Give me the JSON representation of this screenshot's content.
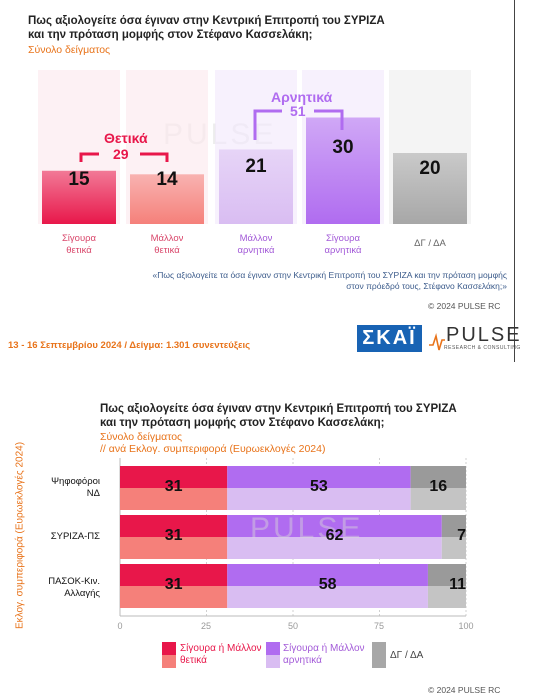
{
  "chart1": {
    "title_line1": "Πως αξιολογείτε όσα έγιναν στην Κεντρική Επιτροπή του ΣΥΡΙΖΑ",
    "title_line2": "και την πρόταση μομφής στον Στέφανο Κασσελάκη;",
    "subtitle": "Σύνολο δείγματος",
    "group_pos_label": "Θετικά",
    "group_pos_total": "29",
    "group_neg_label": "Αρνητικά",
    "group_neg_total": "51",
    "note_line1": "«Πως αξιολογείτε τα όσα έγιναν στην Κεντρική Επιτροπή του ΣΥΡΙΖΑ και την πρόταση μομφής",
    "note_line2": "στον πρόεδρό τους, Στέφανο Κασσελάκη;»",
    "copyright": "© 2024 PULSE RC",
    "labels": [
      {
        "l1": "Σίγουρα",
        "l2": "θετικά"
      },
      {
        "l1": "Μάλλον",
        "l2": "θετικά"
      },
      {
        "l1": "Μάλλον",
        "l2": "αρνητικά"
      },
      {
        "l1": "Σίγουρα",
        "l2": "αρνητικά"
      },
      {
        "l1": "ΔΓ / ΔΑ",
        "l2": ""
      }
    ],
    "value_labels": [
      "15",
      "14",
      "21",
      "30",
      "20"
    ]
  },
  "footer": {
    "dates": "13 - 16 Σεπτεμβρίου 2024  /  Δείγμα:  1.301 συνεντεύξεις",
    "logo_skai": "ΣΚΑΪ",
    "logo_pulse": "PULSE",
    "logo_pulse_sub": "RESEARCH & CONSULTING",
    "watermark": "PULSE"
  },
  "chart2": {
    "title_line1": "Πως αξιολογείτε όσα έγιναν στην Κεντρική Επιτροπή του ΣΥΡΙΖΑ",
    "title_line2": "και την πρόταση μομφής στον Στέφανο Κασσελάκη;",
    "subtitle1": "Σύνολο δείγματος",
    "subtitle2": " // ανά Εκλογ. συμπεριφορά (Ευρωεκλογές 2024)",
    "y_axis_label": "Εκλογ. συμπεριφορά (Ευρωεκλογές 2024)",
    "rows": [
      {
        "l1": "Ψηφοφόροι",
        "l2": "ΝΔ"
      },
      {
        "l1": "ΣΥΡΙΖΑ-ΠΣ",
        "l2": ""
      },
      {
        "l1": "ΠΑΣΟΚ-Κιν.",
        "l2": "Αλλαγής"
      }
    ],
    "ticks": [
      "0",
      "25",
      "50",
      "75",
      "100"
    ],
    "legend": [
      {
        "l1": "Σίγουρα ή Μάλλον",
        "l2": "θετικά"
      },
      {
        "l1": "Σίγουρα ή Μάλλον",
        "l2": "αρνητικά"
      },
      {
        "l1": "ΔΓ / ΔΑ",
        "l2": ""
      }
    ],
    "copyright": "© 2024 PULSE RC"
  },
  "chart_data": [
    {
      "type": "bar",
      "title": "Πως αξιολογείτε όσα έγιναν στην Κεντρική Επιτροπή του ΣΥΡΙΖΑ και την πρόταση μομφής στον Στέφανο Κασσελάκη;",
      "subtitle": "Σύνολο δείγματος",
      "categories": [
        "Σίγουρα θετικά",
        "Μάλλον θετικά",
        "Μάλλον αρνητικά",
        "Σίγουρα αρνητικά",
        "ΔΓ / ΔΑ"
      ],
      "values": [
        15,
        14,
        21,
        30,
        20
      ],
      "colors": [
        "#e8174a",
        "#f5807a",
        "#d9bdf2",
        "#b06cf0",
        "#a7a7a7"
      ],
      "groups": [
        {
          "name": "Θετικά",
          "total": 29
        },
        {
          "name": "Αρνητικά",
          "total": 51
        }
      ],
      "ylim": [
        0,
        100
      ]
    },
    {
      "type": "bar",
      "orientation": "horizontal",
      "stacked": true,
      "title": "Πως αξιολογείτε όσα έγιναν στην Κεντρική Επιτροπή του ΣΥΡΙΖΑ και την πρόταση μομφής στον Στέφανο Κασσελάκη;",
      "subtitle": "Σύνολο δείγματος // ανά Εκλογ. συμπεριφορά (Ευρωεκλογές 2024)",
      "ylabel": "Εκλογ. συμπεριφορά (Ευρωεκλογές 2024)",
      "categories": [
        "Ψηφοφόροι ΝΔ",
        "ΣΥΡΙΖΑ-ΠΣ",
        "ΠΑΣΟΚ-Κιν. Αλλαγής"
      ],
      "series": [
        {
          "name": "Σίγουρα ή Μάλλον θετικά",
          "values": [
            31,
            31,
            31
          ],
          "color": "#e8174a"
        },
        {
          "name": "Σίγουρα ή Μάλλον αρνητικά",
          "values": [
            53,
            62,
            58
          ],
          "color": "#b06cf0"
        },
        {
          "name": "ΔΓ / ΔΑ",
          "values": [
            16,
            7,
            11
          ],
          "color": "#a7a7a7"
        }
      ],
      "xlim": [
        0,
        100
      ],
      "xticks": [
        0,
        25,
        50,
        75,
        100
      ],
      "legend": "bottom",
      "grid": true
    }
  ]
}
